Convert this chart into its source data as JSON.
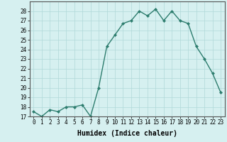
{
  "title": "",
  "xlabel": "Humidex (Indice chaleur)",
  "ylabel": "",
  "x": [
    0,
    1,
    2,
    3,
    4,
    5,
    6,
    7,
    8,
    9,
    10,
    11,
    12,
    13,
    14,
    15,
    16,
    17,
    18,
    19,
    20,
    21,
    22,
    23
  ],
  "y": [
    17.5,
    17.0,
    17.7,
    17.5,
    18.0,
    18.0,
    18.2,
    17.0,
    20.0,
    24.3,
    25.5,
    26.7,
    27.0,
    28.0,
    27.5,
    28.2,
    27.0,
    28.0,
    27.0,
    26.7,
    24.3,
    23.0,
    21.5,
    19.5
  ],
  "line_color": "#2d7d6e",
  "marker": "D",
  "marker_size": 2.0,
  "bg_color": "#d6f0f0",
  "grid_color": "#b0d8d8",
  "ylim": [
    17,
    29
  ],
  "xlim": [
    -0.5,
    23.5
  ],
  "yticks": [
    17,
    18,
    19,
    20,
    21,
    22,
    23,
    24,
    25,
    26,
    27,
    28
  ],
  "xticks": [
    0,
    1,
    2,
    3,
    4,
    5,
    6,
    7,
    8,
    9,
    10,
    11,
    12,
    13,
    14,
    15,
    16,
    17,
    18,
    19,
    20,
    21,
    22,
    23
  ],
  "tick_fontsize": 5.5,
  "xlabel_fontsize": 7.0,
  "line_width": 1.0
}
